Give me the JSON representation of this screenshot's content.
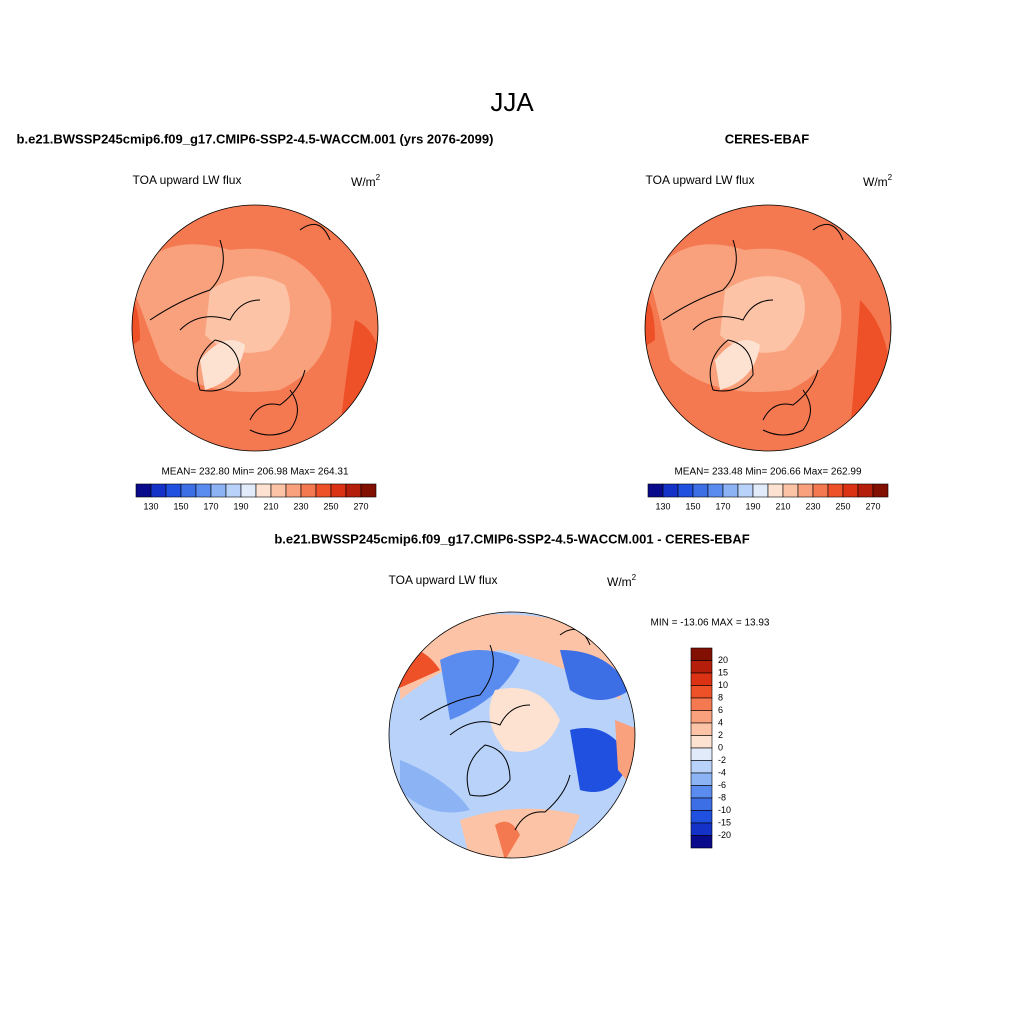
{
  "title": "JJA",
  "panels": [
    {
      "title": "b.e21.BWSSP245cmip6.f09_g17.CMIP6-SSP2-4.5-WACCM.001 (yrs 2076-2099)",
      "variable": "TOA upward LW flux",
      "units": {
        "base": "W/m",
        "sup": "2"
      },
      "stats": "MEAN= 232.80  Min= 206.98  Max= 264.31"
    },
    {
      "title": "CERES-EBAF",
      "variable": "TOA upward LW flux",
      "units": {
        "base": "W/m",
        "sup": "2"
      },
      "stats": "MEAN= 233.48  Min= 206.66  Max= 262.99"
    },
    {
      "title": "b.e21.BWSSP245cmip6.f09_g17.CMIP6-SSP2-4.5-WACCM.001 - CERES-EBAF",
      "variable": "TOA upward LW flux",
      "units": {
        "base": "W/m",
        "sup": "2"
      },
      "stats": "MIN = -13.06 MAX =  13.93"
    }
  ],
  "colorbar": {
    "labels": [
      "130",
      "150",
      "170",
      "190",
      "210",
      "230",
      "250",
      "270"
    ],
    "colors": [
      "#0a0a8c",
      "#1432c8",
      "#2050e0",
      "#3c6ee6",
      "#5a8cf0",
      "#8cb4f5",
      "#b8d2fa",
      "#e1ebfa",
      "#fde2d2",
      "#fcc3a6",
      "#f9a07c",
      "#f47850",
      "#ee5028",
      "#dc3214",
      "#b41e0a",
      "#821002"
    ]
  },
  "diff_colorbar": {
    "labels": [
      "20",
      "15",
      "10",
      "8",
      "6",
      "4",
      "2",
      "0",
      "-2",
      "-4",
      "-6",
      "-8",
      "-10",
      "-15",
      "-20"
    ],
    "colors": [
      "#821002",
      "#b41e0a",
      "#dc3214",
      "#ee5028",
      "#f47850",
      "#f9a07c",
      "#fcc3a6",
      "#fde2d2",
      "#e1ebfa",
      "#b8d2fa",
      "#8cb4f5",
      "#5a8cf0",
      "#3c6ee6",
      "#2050e0",
      "#1432c8",
      "#0a0a8c"
    ]
  }
}
